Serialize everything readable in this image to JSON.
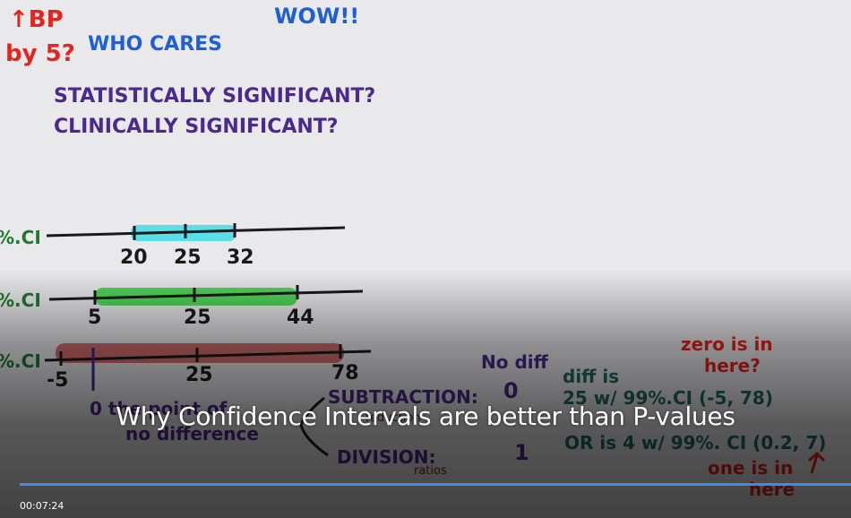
{
  "player": {
    "title": "Why Confidence Intervals are better than P-values",
    "time": "00:07:24",
    "seek_color": "#3d8ae8"
  },
  "whiteboard": {
    "red_top_arrow": "↑BP",
    "red_top_by": "by 5?",
    "who_cares": "WHO CARES",
    "wow": "WOW!!",
    "stat_sig": "STATISTICALLY SIGNIFICANT?",
    "clin_sig": "CLINICALLY SIGNIFICANT?",
    "ci_rows": [
      {
        "label": "%.CI",
        "ticks": [
          "20",
          "25",
          "32"
        ],
        "highlight": "#41dce6"
      },
      {
        "label": "%.CI",
        "ticks": [
          "5",
          "25",
          "44"
        ],
        "highlight": "#37d241"
      },
      {
        "label": "%.CI",
        "ticks": [
          "-5",
          "25",
          "78"
        ],
        "highlight": "#c83c3c"
      }
    ],
    "no_diff": "No diff",
    "point_line1": "0 the point of",
    "point_line2": "no difference",
    "subtraction": "SUBTRACTION:",
    "reduction": "reduction",
    "subtraction_val": "0",
    "division": "DIVISION:",
    "ratios": "ratios",
    "division_val": "1",
    "diff_line1": "diff is",
    "diff_line2": "25 w/ 99%.CI (-5, 78)",
    "zero_line1": "zero is in",
    "zero_line2": "here?",
    "or_line": "OR is 4  w/ 99%. CI (0.2, 7)",
    "one_line1": "one is in",
    "one_line2": "here",
    "colors": {
      "red": "#e0261e",
      "blue": "#1f5fd6",
      "purple": "#4a2a8c",
      "green": "#1f7a2e",
      "teal": "#1f6b5c",
      "maroon": "#8a1a22"
    }
  }
}
